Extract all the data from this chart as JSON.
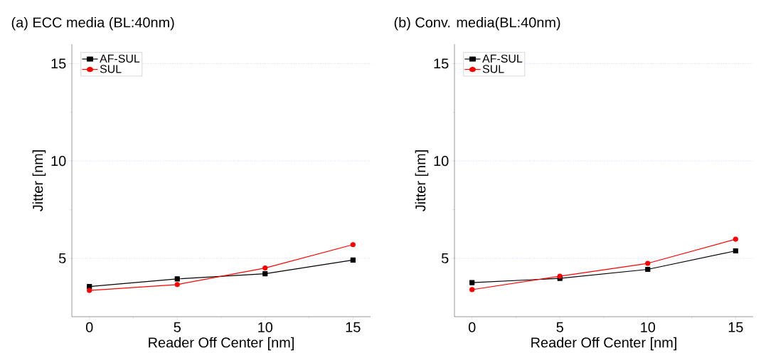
{
  "chart_data": [
    {
      "type": "line",
      "title": "(a) ECC media (BL:40nm)",
      "xlabel": "Reader Off Center [nm]",
      "ylabel": "Jitter [nm]",
      "x": [
        0,
        5,
        10,
        15
      ],
      "series": [
        {
          "name": "AF-SUL",
          "color": "#000000",
          "marker": "square",
          "values": [
            3.55,
            3.94,
            4.21,
            4.91
          ]
        },
        {
          "name": "SUL",
          "color": "#ff0000",
          "marker": "circle",
          "values": [
            3.35,
            3.65,
            4.5,
            5.7
          ]
        }
      ],
      "xlim": [
        -1,
        16
      ],
      "ylim": [
        2,
        16
      ],
      "xticks": [
        0,
        5,
        10,
        15
      ],
      "yticks": [
        5,
        10,
        15
      ],
      "grid": "y",
      "legend": "top left"
    },
    {
      "type": "line",
      "title": "(b) Conv. media(BL:40nm)",
      "xlabel": "Reader Off Center [nm]",
      "ylabel": "Jitter [nm]",
      "x": [
        0,
        5,
        10,
        15
      ],
      "series": [
        {
          "name": "AF-SUL",
          "color": "#000000",
          "marker": "square",
          "values": [
            3.75,
            3.97,
            4.43,
            5.38
          ]
        },
        {
          "name": "SUL",
          "color": "#ff0000",
          "marker": "circle",
          "values": [
            3.39,
            4.08,
            4.74,
            5.98
          ]
        }
      ],
      "xlim": [
        -1,
        16
      ],
      "ylim": [
        2,
        16
      ],
      "xticks": [
        0,
        5,
        10,
        15
      ],
      "yticks": [
        5,
        10,
        15
      ],
      "grid": "y",
      "legend": "top left"
    }
  ]
}
